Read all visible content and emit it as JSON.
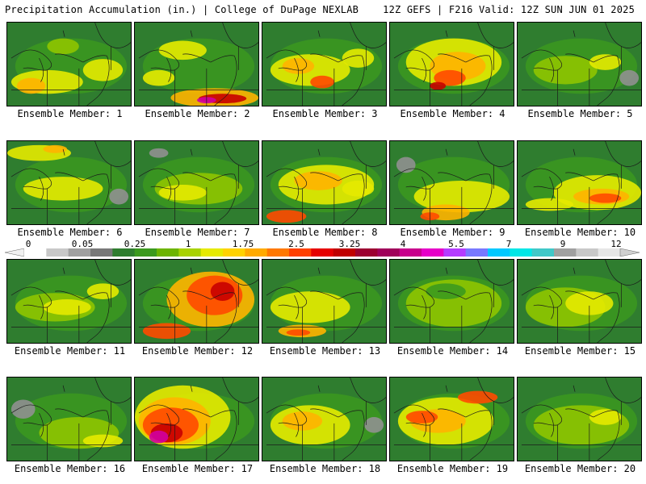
{
  "header": {
    "left": "Precipitation Accumulation (in.) | College of DuPage NEXLAB",
    "right": "12Z GEFS | F216 Valid: 12Z SUN JUN 01 2025"
  },
  "panels": [
    {
      "label": "Ensemble Member: 1"
    },
    {
      "label": "Ensemble Member: 2"
    },
    {
      "label": "Ensemble Member: 3"
    },
    {
      "label": "Ensemble Member: 4"
    },
    {
      "label": "Ensemble Member: 5"
    },
    {
      "label": "Ensemble Member: 6"
    },
    {
      "label": "Ensemble Member: 7"
    },
    {
      "label": "Ensemble Member: 8"
    },
    {
      "label": "Ensemble Member: 9"
    },
    {
      "label": "Ensemble Member: 10"
    },
    {
      "label": "Ensemble Member: 11"
    },
    {
      "label": "Ensemble Member: 12"
    },
    {
      "label": "Ensemble Member: 13"
    },
    {
      "label": "Ensemble Member: 14"
    },
    {
      "label": "Ensemble Member: 15"
    },
    {
      "label": "Ensemble Member: 16"
    },
    {
      "label": "Ensemble Member: 17"
    },
    {
      "label": "Ensemble Member: 18"
    },
    {
      "label": "Ensemble Member: 19"
    },
    {
      "label": "Ensemble Member: 20"
    }
  ],
  "colorbar": {
    "labels": [
      "0",
      "0.05",
      "0.25",
      "1",
      "1.75",
      "2.5",
      "3.25",
      "4",
      "5.5",
      "7",
      "9",
      "12"
    ],
    "colors": [
      "#ffffff",
      "#c8c8c8",
      "#a0a0a0",
      "#787878",
      "#2f7d2f",
      "#3c9a1e",
      "#6cb400",
      "#a8d200",
      "#e6ea00",
      "#ffd200",
      "#ffaa00",
      "#ff7800",
      "#ff4000",
      "#e60000",
      "#c00000",
      "#9c0030",
      "#a0005a",
      "#c8008c",
      "#e600c8",
      "#b43cff",
      "#7878ff",
      "#00c8ff",
      "#00e6e6",
      "#40c8c8",
      "#a0a0a0",
      "#c8c8c8",
      "#e6e6e6"
    ]
  }
}
